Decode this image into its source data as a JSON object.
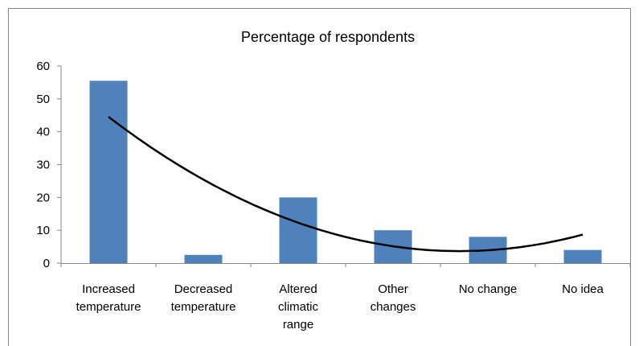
{
  "chart_data": {
    "type": "bar",
    "title": "Percentage of respondents",
    "categories": [
      [
        "Increased",
        "temperature"
      ],
      [
        "Decreased",
        "temperature"
      ],
      [
        "Altered",
        "climatic",
        "range"
      ],
      [
        "Other",
        "changes"
      ],
      [
        "No change"
      ],
      [
        "No idea"
      ]
    ],
    "values": [
      55.5,
      2.5,
      20,
      10,
      8,
      4
    ],
    "color": "#4f81bd",
    "ylim": [
      0,
      60
    ],
    "yticks": [
      0,
      10,
      20,
      30,
      40,
      50,
      60
    ],
    "grid": false,
    "trendline": {
      "order": 2,
      "color": "#000000"
    }
  }
}
